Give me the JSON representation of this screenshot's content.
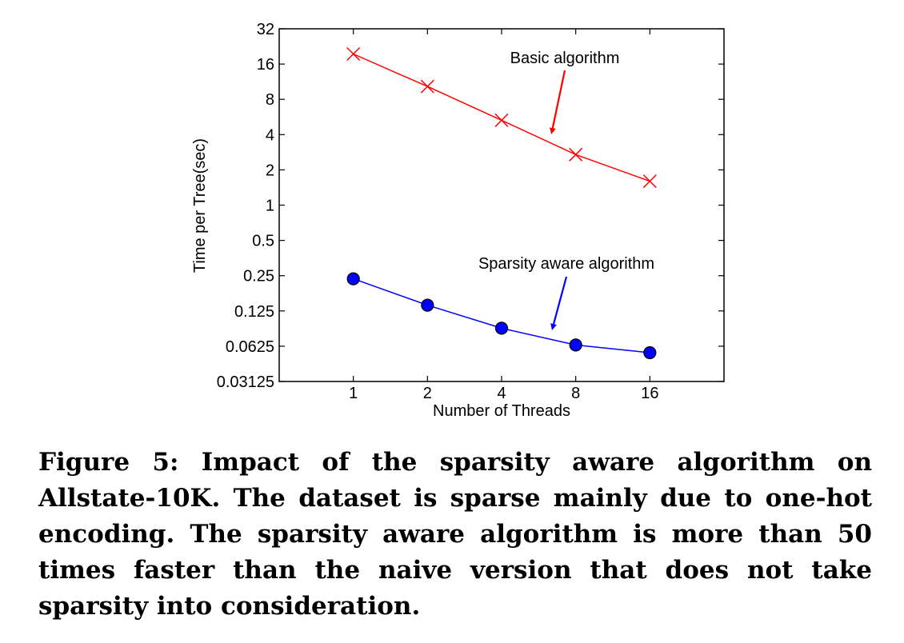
{
  "chart_data": {
    "type": "line",
    "x_scale": "log2",
    "y_scale": "log2",
    "x": [
      1,
      2,
      4,
      8,
      16
    ],
    "x_tick_labels": [
      "1",
      "2",
      "4",
      "8",
      "16"
    ],
    "y_ticks": [
      0.03125,
      0.0625,
      0.125,
      0.25,
      0.5,
      1,
      2,
      4,
      8,
      16,
      32
    ],
    "y_tick_labels": [
      "0.03125",
      "0.0625",
      "0.125",
      "0.25",
      "0.5",
      "1",
      "2",
      "4",
      "8",
      "16",
      "32"
    ],
    "xlim": [
      0.5,
      32
    ],
    "ylim": [
      0.03125,
      32
    ],
    "xlabel": "Number of Threads",
    "ylabel": "Time per Tree(sec)",
    "grid": false,
    "series": [
      {
        "name": "Basic algorithm",
        "values": [
          19.5,
          10.3,
          5.3,
          2.7,
          1.6
        ],
        "color": "#ff0000",
        "marker": "x"
      },
      {
        "name": "Sparsity aware algorithm",
        "values": [
          0.235,
          0.14,
          0.089,
          0.064,
          0.055
        ],
        "color": "#0000ff",
        "marker": "circle"
      }
    ],
    "annotations": [
      {
        "text": "Basic algorithm",
        "series": 0,
        "arrow_color": "#ff0000"
      },
      {
        "text": "Sparsity aware algorithm",
        "series": 1,
        "arrow_color": "#0000ff"
      }
    ]
  },
  "caption": "Figure 5: Impact of the sparsity aware algorithm on Allstate-10K. The dataset is sparse mainly due to one-hot encoding. The sparsity aware algorithm is more than 50 times faster than the naive version that does not take sparsity into consideration."
}
